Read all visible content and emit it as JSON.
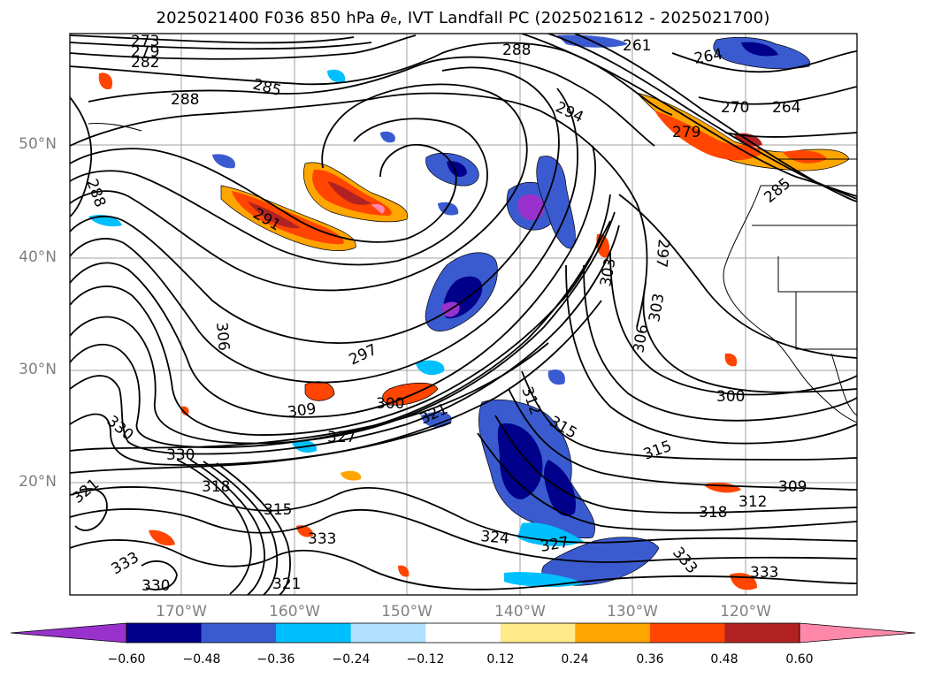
{
  "title": {
    "prefix": "2025021400 F036 850 hPa ",
    "theta": "θ",
    "theta_sub": "e",
    "suffix": ", IVT Landfall PC (2025021612 - 2025021700)"
  },
  "map": {
    "lat_labels": [
      "50°N",
      "40°N",
      "30°N",
      "20°N"
    ],
    "lon_labels": [
      "170°W",
      "160°W",
      "150°W",
      "140°W",
      "130°W",
      "120°W"
    ],
    "gridlines": true,
    "contour_field": "850 hPa theta-e (K)",
    "contour_labels": [
      "273",
      "279",
      "282",
      "288",
      "285",
      "288",
      "294",
      "261",
      "264",
      "270",
      "264",
      "279",
      "285",
      "288",
      "291",
      "297",
      "303",
      "306",
      "303",
      "306",
      "297",
      "300",
      "309",
      "321",
      "327",
      "312",
      "315",
      "315",
      "300",
      "330",
      "330",
      "318",
      "321",
      "315",
      "333",
      "324",
      "327",
      "309",
      "312",
      "318",
      "333",
      "333",
      "321",
      "333",
      "330"
    ]
  },
  "colorbar": {
    "ticks": [
      "−0.60",
      "−0.48",
      "−0.36",
      "−0.24",
      "−0.12",
      "0.12",
      "0.24",
      "0.36",
      "0.48",
      "0.60"
    ],
    "colors": [
      "#9932cc",
      "#00008b",
      "#3a5bd0",
      "#00bfff",
      "#b0e0ff",
      "#ffffff",
      "#ffeb8a",
      "#ffa500",
      "#ff4500",
      "#b22222",
      "#ff88aa"
    ],
    "extend": "both"
  }
}
